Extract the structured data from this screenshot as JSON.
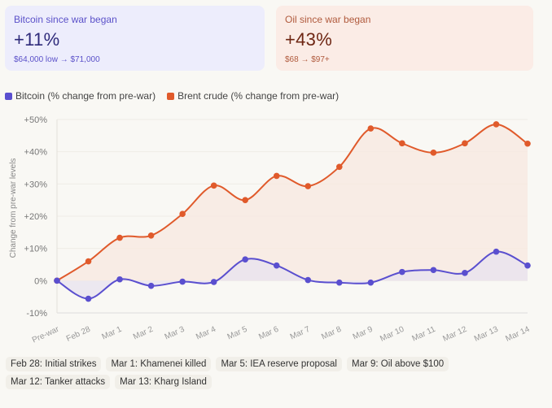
{
  "cards": {
    "bitcoin": {
      "label": "Bitcoin since war began",
      "value": "+11%",
      "detail": "$64,000 low → $71,000"
    },
    "oil": {
      "label": "Oil since war began",
      "value": "+43%",
      "detail": "$68 → $97+"
    }
  },
  "chart_data": {
    "type": "line",
    "ylabel": "Change from pre-war levels",
    "ylim": [
      -10,
      50
    ],
    "yticks": [
      "+50%",
      "+40%",
      "+30%",
      "+20%",
      "+10%",
      "0%",
      "-10%"
    ],
    "ytick_values": [
      50,
      40,
      30,
      20,
      10,
      0,
      -10
    ],
    "categories": [
      "Pre-war",
      "Feb 28",
      "Mar 1",
      "Mar 2",
      "Mar 3",
      "Mar 4",
      "Mar 5",
      "Mar 6",
      "Mar 7",
      "Mar 8",
      "Mar 9",
      "Mar 10",
      "Mar 11",
      "Mar 12",
      "Mar 13",
      "Mar 14"
    ],
    "legend_position": "top-left",
    "series": [
      {
        "name": "Bitcoin (% change from pre-war)",
        "color": "#5a4fcf",
        "fill": "#e9e3ef",
        "values": [
          0,
          -5.6,
          0.4,
          -1.6,
          -0.3,
          -0.4,
          6.6,
          4.7,
          0.2,
          -0.6,
          -0.6,
          2.7,
          3.3,
          2.4,
          9,
          4.7
        ]
      },
      {
        "name": "Brent crude (% change from pre-war)",
        "color": "#e05a2b",
        "fill": "#f8e9e1",
        "values": [
          0,
          6,
          13.3,
          14,
          20.7,
          29.5,
          25,
          32.5,
          29.3,
          35.3,
          47.2,
          42.6,
          39.7,
          42.6,
          48.5,
          42.5
        ]
      }
    ]
  },
  "events": [
    "Feb 28: Initial strikes",
    "Mar 1: Khamenei killed",
    "Mar 5: IEA reserve proposal",
    "Mar 9: Oil above $100",
    "Mar 12: Tanker attacks",
    "Mar 13: Kharg Island"
  ]
}
